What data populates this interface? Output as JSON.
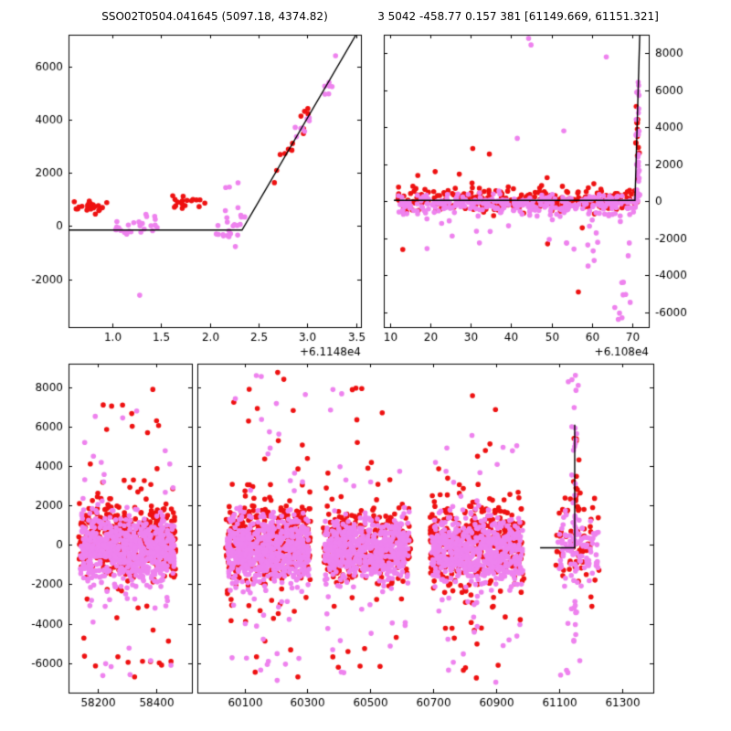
{
  "colors": {
    "red": "#ee1111",
    "violet": "#ee82ee",
    "line": "#000000",
    "background": "#ffffff"
  },
  "chart_data": [
    {
      "id": "top-left",
      "type": "scatter",
      "title": "SSO02T0504.041645 (5097.18, 4374.82)",
      "xlim": [
        0.55,
        3.55
      ],
      "ylim": [
        -3800,
        7200
      ],
      "xticks": [
        1.0,
        1.5,
        2.0,
        2.5,
        3.0,
        3.5
      ],
      "xtick_labels": [
        "1.0",
        "1.5",
        "2.0",
        "2.5",
        "3.0",
        "3.5"
      ],
      "x_offset_label": "+6.1148e4",
      "yticks": [
        -2000,
        0,
        2000,
        4000,
        6000
      ],
      "ytick_labels": [
        "-2000",
        "0",
        "2000",
        "4000",
        "6000"
      ],
      "ytick_side": "left",
      "line": [
        [
          0.55,
          -150
        ],
        [
          2.33,
          -150
        ],
        [
          3.5,
          7200
        ]
      ],
      "series": [
        {
          "color": "red",
          "kind": "cluster",
          "n": 22,
          "x": [
            0.6,
            0.95
          ],
          "y_mean": 760,
          "y_sd": 130,
          "seed": 11
        },
        {
          "color": "violet",
          "kind": "cluster",
          "n": 26,
          "x": [
            1.02,
            1.46
          ],
          "y_mean": 40,
          "y_sd": 170,
          "seed": 12
        },
        {
          "color": "red",
          "kind": "cluster",
          "n": 18,
          "x": [
            1.6,
            2.0
          ],
          "y_mean": 860,
          "y_sd": 110,
          "seed": 13
        },
        {
          "color": "violet",
          "kind": "cluster",
          "n": 22,
          "x": [
            2.06,
            2.4
          ],
          "y_mean": 30,
          "y_sd": 240,
          "seed": 14
        },
        {
          "color": "violet",
          "kind": "cluster",
          "n": 3,
          "x": [
            2.12,
            2.3
          ],
          "y_mean": 1530,
          "y_sd": 70,
          "seed": 15
        },
        {
          "color": "red",
          "kind": "trend",
          "n": 13,
          "x": [
            2.52,
            3.04
          ],
          "x0": 2.33,
          "y0": -150,
          "slope": 6282,
          "noise": 260,
          "seed": 16
        },
        {
          "color": "violet",
          "kind": "trend",
          "n": 15,
          "x": [
            2.84,
            3.4
          ],
          "x0": 2.33,
          "y0": -150,
          "slope": 6282,
          "noise": 260,
          "seed": 17
        }
      ],
      "points": [
        {
          "color": "violet",
          "x": 1.28,
          "y": -2600
        }
      ]
    },
    {
      "id": "top-right",
      "type": "scatter",
      "title": "3 5042 -458.77 0.157 381 [61149.669, 61151.321]",
      "xlim": [
        8.5,
        74
      ],
      "ylim": [
        -6800,
        9000
      ],
      "xticks": [
        10,
        20,
        30,
        40,
        50,
        60,
        70
      ],
      "xtick_labels": [
        "10",
        "20",
        "30",
        "40",
        "50",
        "60",
        "70"
      ],
      "x_offset_label": "+6.108e4",
      "yticks": [
        -6000,
        -4000,
        -2000,
        0,
        2000,
        4000,
        6000,
        8000
      ],
      "ytick_labels": [
        "-6000",
        "-4000",
        "-2000",
        "0",
        "2000",
        "4000",
        "6000",
        "8000"
      ],
      "ytick_side": "right",
      "line": [
        [
          11,
          50
        ],
        [
          70.6,
          50
        ],
        [
          71.8,
          9200
        ]
      ],
      "series": [
        {
          "color": "red",
          "kind": "cluster",
          "n": 260,
          "x": [
            12,
            71
          ],
          "y_mean": 120,
          "y_sd": 330,
          "seed": 21
        },
        {
          "color": "violet",
          "kind": "cluster",
          "n": 300,
          "x": [
            12,
            71
          ],
          "y_mean": -140,
          "y_sd": 260,
          "seed": 22
        },
        {
          "color": "violet",
          "kind": "outliers",
          "n": 26,
          "x": [
            14,
            70
          ],
          "y_range": [
            -2700,
            -600
          ],
          "seed": 23
        },
        {
          "color": "red",
          "kind": "cluster",
          "n": 14,
          "x": [
            12,
            68
          ],
          "y_mean": 300,
          "y_sd": 1300,
          "seed": 24
        },
        {
          "color": "violet",
          "kind": "column",
          "n": 30,
          "x_center": 71.3,
          "x_sd": 0.25,
          "y_range": [
            -300,
            6500
          ],
          "seed": 25
        },
        {
          "color": "red",
          "kind": "column",
          "n": 16,
          "x_center": 71.2,
          "x_sd": 0.3,
          "y_range": [
            -400,
            5200
          ],
          "seed": 26
        },
        {
          "color": "violet",
          "kind": "outliers",
          "n": 10,
          "x": [
            65.5,
            70.2
          ],
          "y_range": [
            -6400,
            -2500
          ],
          "seed": 27
        }
      ],
      "points": [
        {
          "color": "violet",
          "x": 44.3,
          "y": 8800
        },
        {
          "color": "violet",
          "x": 44.9,
          "y": 8450
        },
        {
          "color": "violet",
          "x": 63.5,
          "y": 7800
        },
        {
          "color": "violet",
          "x": 41.5,
          "y": 3400
        },
        {
          "color": "violet",
          "x": 53.0,
          "y": 3800
        },
        {
          "color": "red",
          "x": 30.5,
          "y": 2850
        },
        {
          "color": "red",
          "x": 34.6,
          "y": 2550
        },
        {
          "color": "red",
          "x": 21.2,
          "y": 1600
        },
        {
          "color": "red",
          "x": 13.2,
          "y": -2600
        },
        {
          "color": "red",
          "x": 56.6,
          "y": -4900
        },
        {
          "color": "red",
          "x": 49.0,
          "y": -2300
        },
        {
          "color": "violet",
          "x": 59.0,
          "y": -3500
        },
        {
          "color": "violet",
          "x": 60.5,
          "y": -3200
        }
      ]
    },
    {
      "id": "bottom-left",
      "type": "scatter",
      "xlim": [
        58100,
        58520
      ],
      "ylim": [
        -7500,
        9200
      ],
      "xticks": [
        58200,
        58400
      ],
      "xtick_labels": [
        "58200",
        "58400"
      ],
      "yticks": [
        -6000,
        -4000,
        -2000,
        0,
        2000,
        4000,
        6000,
        8000
      ],
      "ytick_labels": [
        "-6000",
        "-4000",
        "-2000",
        "0",
        "2000",
        "4000",
        "6000",
        "8000"
      ],
      "ytick_side": "left",
      "series": [
        {
          "color": "red",
          "kind": "cluster",
          "n": 450,
          "x": [
            58135,
            58465
          ],
          "y_mean": 250,
          "y_sd": 1050,
          "seed": 31
        },
        {
          "color": "violet",
          "kind": "cluster",
          "n": 650,
          "x": [
            58140,
            58460
          ],
          "y_mean": -250,
          "y_sd": 850,
          "seed": 32
        },
        {
          "color": "red",
          "kind": "outliers",
          "n": 14,
          "x": [
            58150,
            58450
          ],
          "y_range": [
            2600,
            8100
          ],
          "seed": 33
        },
        {
          "color": "violet",
          "kind": "outliers",
          "n": 12,
          "x": [
            58150,
            58450
          ],
          "y_range": [
            2600,
            7700
          ],
          "seed": 34
        },
        {
          "color": "red",
          "kind": "outliers",
          "n": 16,
          "x": [
            58150,
            58450
          ],
          "y_range": [
            -6900,
            -2600
          ],
          "seed": 35
        },
        {
          "color": "violet",
          "kind": "outliers",
          "n": 16,
          "x": [
            58150,
            58450
          ],
          "y_range": [
            -6700,
            -2600
          ],
          "seed": 36
        }
      ]
    },
    {
      "id": "bottom-right",
      "type": "scatter",
      "xlim": [
        59950,
        61400
      ],
      "ylim": [
        -7500,
        9200
      ],
      "xticks": [
        60100,
        60300,
        60500,
        60700,
        60900,
        61100,
        61300
      ],
      "xtick_labels": [
        "60100",
        "60300",
        "60500",
        "60700",
        "60900",
        "61100",
        "61300"
      ],
      "yticks": [
        -6000,
        -4000,
        -2000,
        0,
        2000,
        4000,
        6000,
        8000
      ],
      "line": [
        [
          61040,
          -150
        ],
        [
          61150,
          -150
        ],
        [
          61150,
          6100
        ]
      ],
      "series": [
        {
          "color": "red",
          "kind": "cluster",
          "n": 420,
          "x": [
            60040,
            60310
          ],
          "y_mean": 150,
          "y_sd": 1100,
          "seed": 41
        },
        {
          "color": "violet",
          "kind": "cluster",
          "n": 600,
          "x": [
            60045,
            60305
          ],
          "y_mean": -250,
          "y_sd": 900,
          "seed": 42
        },
        {
          "color": "red",
          "kind": "outliers",
          "n": 16,
          "x": [
            60050,
            60300
          ],
          "y_range": [
            2700,
            8800
          ],
          "seed": 43
        },
        {
          "color": "violet",
          "kind": "outliers",
          "n": 14,
          "x": [
            60050,
            60300
          ],
          "y_range": [
            2700,
            8600
          ],
          "seed": 44
        },
        {
          "color": "red",
          "kind": "outliers",
          "n": 14,
          "x": [
            60050,
            60300
          ],
          "y_range": [
            -6900,
            -2700
          ],
          "seed": 45
        },
        {
          "color": "violet",
          "kind": "outliers",
          "n": 18,
          "x": [
            60050,
            60300
          ],
          "y_range": [
            -6900,
            -2700
          ],
          "seed": 46
        },
        {
          "color": "red",
          "kind": "cluster",
          "n": 360,
          "x": [
            60350,
            60630
          ],
          "y_mean": 50,
          "y_sd": 950,
          "seed": 47
        },
        {
          "color": "violet",
          "kind": "cluster",
          "n": 520,
          "x": [
            60355,
            60625
          ],
          "y_mean": -250,
          "y_sd": 800,
          "seed": 48
        },
        {
          "color": "red",
          "kind": "outliers",
          "n": 10,
          "x": [
            60360,
            60620
          ],
          "y_range": [
            2600,
            8800
          ],
          "seed": 49
        },
        {
          "color": "violet",
          "kind": "outliers",
          "n": 8,
          "x": [
            60360,
            60620
          ],
          "y_range": [
            2600,
            8000
          ],
          "seed": 50
        },
        {
          "color": "red",
          "kind": "outliers",
          "n": 10,
          "x": [
            60360,
            60620
          ],
          "y_range": [
            -6500,
            -2600
          ],
          "seed": 51
        },
        {
          "color": "violet",
          "kind": "outliers",
          "n": 12,
          "x": [
            60360,
            60620
          ],
          "y_range": [
            -6500,
            -2600
          ],
          "seed": 52
        },
        {
          "color": "red",
          "kind": "cluster",
          "n": 400,
          "x": [
            60690,
            60990
          ],
          "y_mean": 0,
          "y_sd": 1100,
          "seed": 53
        },
        {
          "color": "violet",
          "kind": "cluster",
          "n": 560,
          "x": [
            60695,
            60985
          ],
          "y_mean": -350,
          "y_sd": 900,
          "seed": 54
        },
        {
          "color": "red",
          "kind": "outliers",
          "n": 10,
          "x": [
            60700,
            60980
          ],
          "y_range": [
            2600,
            8300
          ],
          "seed": 55
        },
        {
          "color": "violet",
          "kind": "outliers",
          "n": 10,
          "x": [
            60700,
            60980
          ],
          "y_range": [
            2600,
            7600
          ],
          "seed": 56
        },
        {
          "color": "red",
          "kind": "outliers",
          "n": 14,
          "x": [
            60700,
            60980
          ],
          "y_range": [
            -7000,
            -2600
          ],
          "seed": 57
        },
        {
          "color": "violet",
          "kind": "outliers",
          "n": 16,
          "x": [
            60700,
            60980
          ],
          "y_range": [
            -7000,
            -2600
          ],
          "seed": 58
        },
        {
          "color": "red",
          "kind": "cluster",
          "n": 70,
          "x": [
            61090,
            61230
          ],
          "y_mean": 0,
          "y_sd": 1200,
          "seed": 59
        },
        {
          "color": "violet",
          "kind": "cluster",
          "n": 90,
          "x": [
            61095,
            61225
          ],
          "y_mean": -150,
          "y_sd": 1000,
          "seed": 60
        },
        {
          "color": "violet",
          "kind": "column",
          "n": 40,
          "x_center": 61150,
          "x_sd": 6,
          "y_range": [
            -6500,
            8800
          ],
          "seed": 61
        },
        {
          "color": "red",
          "kind": "column",
          "n": 10,
          "x_center": 61152,
          "x_sd": 5,
          "y_range": [
            1500,
            6200
          ],
          "seed": 62
        },
        {
          "color": "violet",
          "kind": "outliers",
          "n": 6,
          "x": [
            61100,
            61200
          ],
          "y_range": [
            -6700,
            -2600
          ],
          "seed": 63
        }
      ]
    }
  ]
}
